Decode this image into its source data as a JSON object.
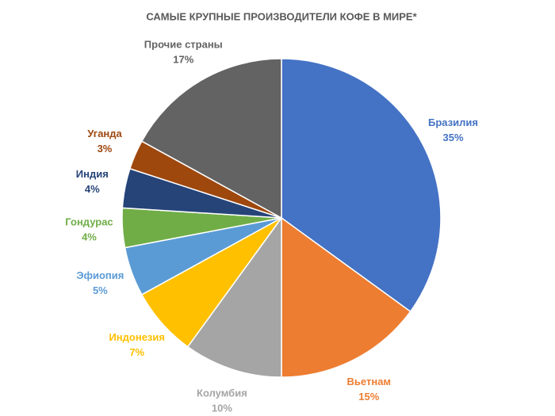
{
  "chart_data": {
    "type": "pie",
    "title": "САМЫЕ КРУПНЫЕ ПРОИЗВОДИТЕЛИ КОФЕ В МИРЕ*",
    "categories": [
      "Бразилия",
      "Вьетнам",
      "Колумбия",
      "Индонезия",
      "Эфиопия",
      "Гондурас",
      "Индия",
      "Уганда",
      "Прочие страны"
    ],
    "values": [
      35,
      15,
      10,
      7,
      5,
      4,
      4,
      3,
      17
    ],
    "value_labels": [
      "35%",
      "15%",
      "10%",
      "7%",
      "5%",
      "4%",
      "4%",
      "3%",
      "17%"
    ],
    "colors": [
      "#4472c4",
      "#ed7d31",
      "#a5a5a5",
      "#ffc000",
      "#5b9bd5",
      "#70ad47",
      "#264478",
      "#9e480e",
      "#636363"
    ]
  }
}
